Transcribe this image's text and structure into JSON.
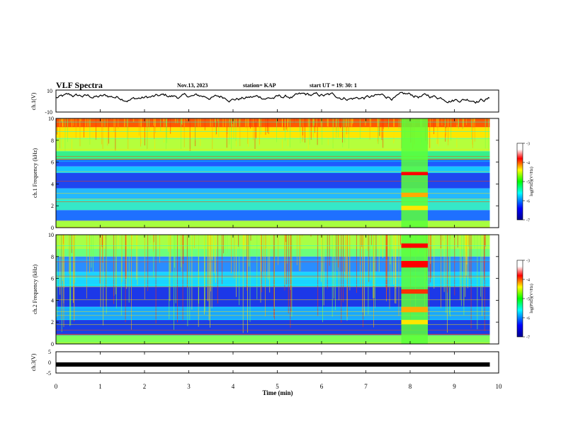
{
  "header": {
    "title": "VLF Spectra",
    "date": "Nov.13, 2023",
    "station": "station= KAP",
    "start": "start UT =  19: 30: 1"
  },
  "chart_data": [
    {
      "type": "line",
      "title": "",
      "ylabel": "ch.1(V)",
      "ylim": [
        -10,
        10
      ],
      "yticks": [
        "10",
        "-10"
      ],
      "description_series": "noisy waveform fluctuating around ~2-5 V",
      "approx_level_v": [
        2,
        5
      ]
    },
    {
      "type": "heatmap",
      "ylabel": "ch.1 Frequency (kHz)",
      "ylim": [
        0,
        10
      ],
      "yticks": [
        "0",
        "2",
        "4",
        "6",
        "8",
        "10"
      ],
      "colorbar": {
        "label": "log(PSD)(V²/Hz)",
        "range": [
          -7,
          -3
        ],
        "ticks": [
          "-3",
          "-4",
          "-5",
          "-6",
          "-7"
        ]
      }
    },
    {
      "type": "heatmap",
      "ylabel": "ch.2 Frequency (kHz)",
      "ylim": [
        0,
        10
      ],
      "yticks": [
        "0",
        "2",
        "4",
        "6",
        "8",
        "10"
      ],
      "colorbar": {
        "label": "log(PSD)(V²/Hz)",
        "range": [
          -7,
          -3
        ],
        "ticks": [
          "-3",
          "-4",
          "-5",
          "-6",
          "-7"
        ]
      }
    },
    {
      "type": "line",
      "ylabel": "ch.3(V)",
      "ylim": [
        -5,
        5
      ],
      "yticks": [
        "5",
        "0",
        "-5"
      ],
      "approx_level_v": -1
    }
  ],
  "xaxis": {
    "label": "Time (min)",
    "xlim": [
      0,
      10
    ],
    "ticks": [
      "0",
      "1",
      "2",
      "3",
      "4",
      "5",
      "6",
      "7",
      "8",
      "9",
      "10"
    ],
    "data_end_min": 9.8,
    "burst_start_min": 7.8,
    "burst_end_min": 8.4
  }
}
